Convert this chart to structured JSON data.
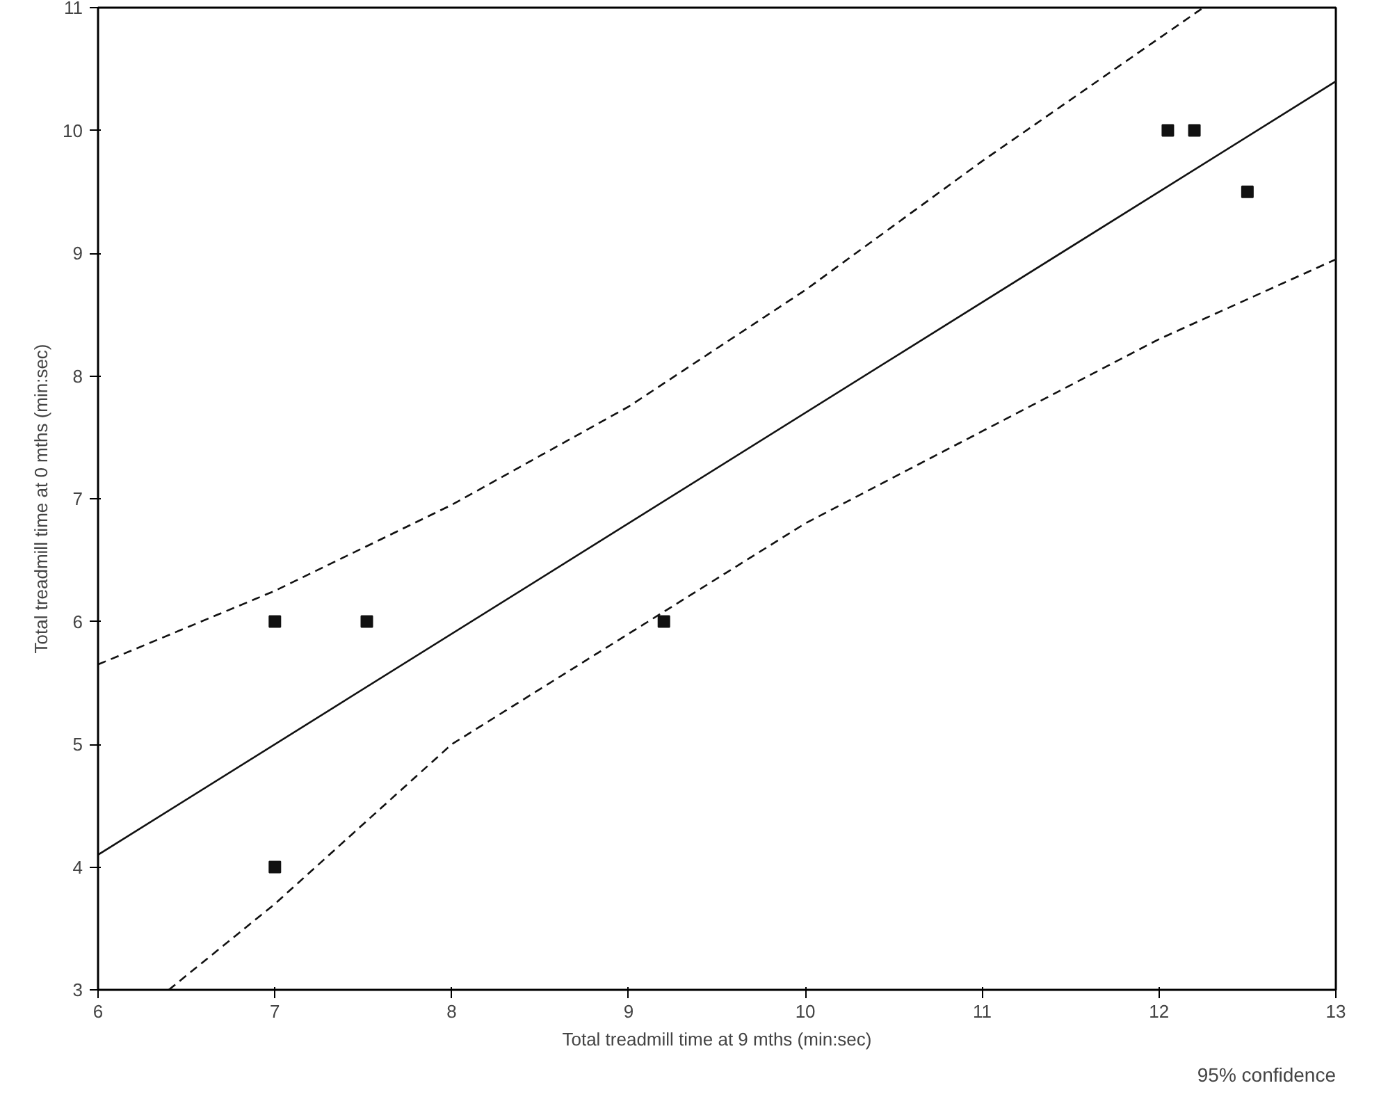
{
  "chart_data": {
    "type": "scatter",
    "xlabel": "Total treadmill time at 9 mths (min:sec)",
    "ylabel": "Total treadmill time at 0 mths (min:sec)",
    "xlim": [
      6,
      13
    ],
    "ylim": [
      3,
      11
    ],
    "xticks": [
      6,
      7,
      8,
      9,
      10,
      11,
      12,
      13
    ],
    "yticks": [
      3,
      4,
      5,
      6,
      7,
      8,
      9,
      10,
      11
    ],
    "grid": false,
    "annotations": [
      "95% confidence"
    ],
    "series": [
      {
        "marker": "square",
        "color": "#111111",
        "x": [
          7,
          7.52,
          9.2,
          7,
          12.05,
          12.2,
          12.5
        ],
        "values": [
          6,
          6,
          6,
          4,
          10,
          10,
          9.5
        ]
      },
      {
        "type": "line",
        "line_style": "solid",
        "color": "#111111",
        "x": [
          6,
          13
        ],
        "values": [
          4.1,
          10.4
        ]
      },
      {
        "type": "line",
        "line_style": "dashed",
        "color": "#111111",
        "x": [
          6,
          7,
          8,
          9,
          10,
          11,
          12,
          12.25
        ],
        "values": [
          5.65,
          6.25,
          6.95,
          7.75,
          8.7,
          9.75,
          10.75,
          11
        ]
      },
      {
        "type": "line",
        "line_style": "dashed",
        "color": "#111111",
        "x": [
          6.4,
          7,
          8,
          9,
          10,
          11,
          12,
          13
        ],
        "values": [
          3,
          3.7,
          5.0,
          5.9,
          6.8,
          7.55,
          8.3,
          8.95
        ]
      }
    ]
  }
}
